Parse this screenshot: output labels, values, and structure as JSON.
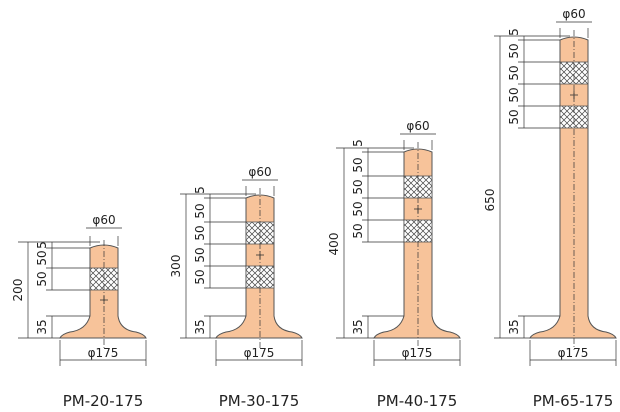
{
  "colors": {
    "post_fill": "#f7c39a",
    "post_stroke": "#555555",
    "reflector_fill": "#ffffff",
    "line": "#333333"
  },
  "posts": [
    {
      "name": "PM-20-175",
      "top_diameter": "φ60",
      "base_diameter": "φ175",
      "total_height": "200",
      "base_height": "35",
      "segments": [
        "5",
        "50",
        "50"
      ]
    },
    {
      "name": "PM-30-175",
      "top_diameter": "φ60",
      "base_diameter": "φ175",
      "total_height": "300",
      "base_height": "35",
      "segments": [
        "5",
        "50",
        "50",
        "50",
        "50"
      ]
    },
    {
      "name": "PM-40-175",
      "top_diameter": "φ60",
      "base_diameter": "φ175",
      "total_height": "400",
      "base_height": "35",
      "segments": [
        "5",
        "50",
        "50",
        "50",
        "50"
      ]
    },
    {
      "name": "PM-65-175",
      "top_diameter": "φ60",
      "base_diameter": "φ175",
      "total_height": "650",
      "base_height": "35",
      "segments": [
        "5",
        "50",
        "50",
        "50",
        "50"
      ]
    }
  ]
}
